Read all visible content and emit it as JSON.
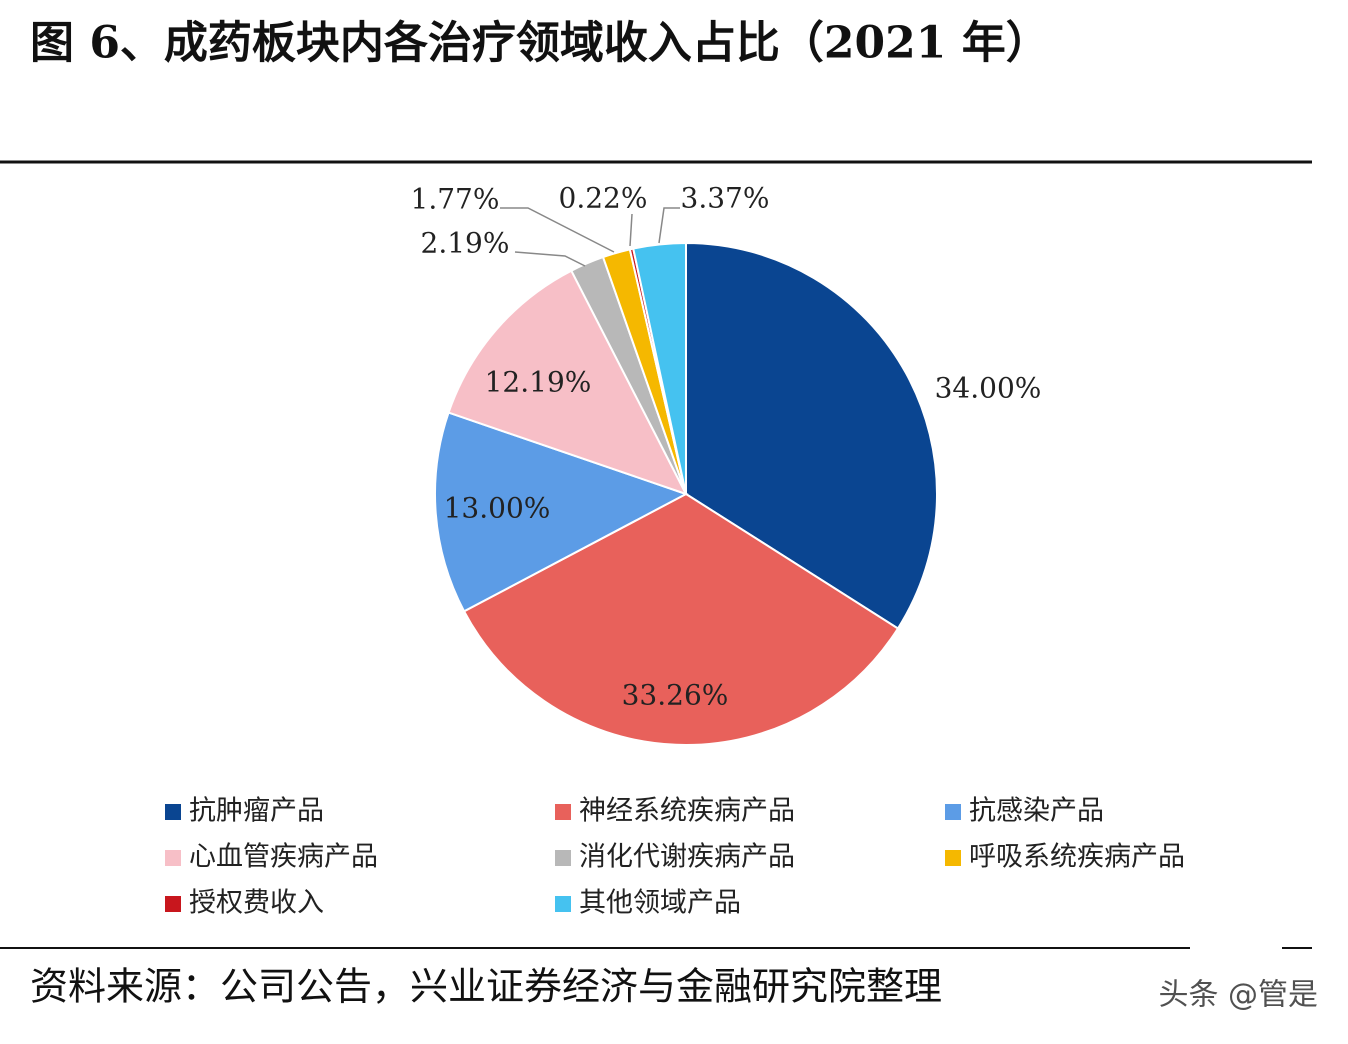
{
  "chart_data": {
    "type": "pie",
    "title": "图 6、成药板块内各治疗领域收入占比（2021 年）",
    "categories": [
      "抗肿瘤产品",
      "神经系统疾病产品",
      "抗感染产品",
      "心血管疾病产品",
      "消化代谢疾病产品",
      "呼吸系统疾病产品",
      "授权费收入",
      "其他领域产品"
    ],
    "values": [
      34.0,
      33.26,
      13.0,
      12.19,
      2.19,
      1.77,
      0.22,
      3.37
    ],
    "value_labels": [
      "34.00%",
      "33.26%",
      "13.00%",
      "12.19%",
      "2.19%",
      "1.77%",
      "0.22%",
      "3.37%"
    ],
    "colors": [
      "#0a4591",
      "#e8615b",
      "#5c9ce6",
      "#f7bfc7",
      "#b8b8b8",
      "#f5b800",
      "#c8161d",
      "#45c2f0"
    ],
    "source": "资料来源：公司公告，兴业证券经济与金融研究院整理",
    "watermark": "头条 @管是"
  }
}
